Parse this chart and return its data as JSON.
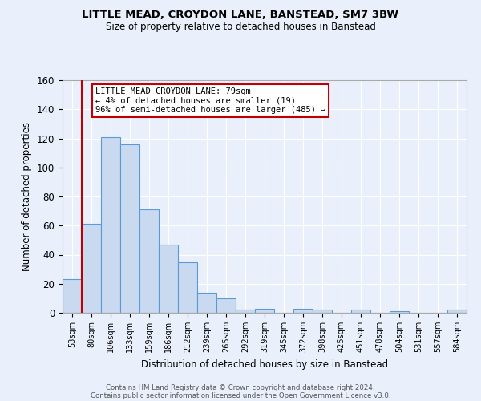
{
  "title1": "LITTLE MEAD, CROYDON LANE, BANSTEAD, SM7 3BW",
  "title2": "Size of property relative to detached houses in Banstead",
  "xlabel": "Distribution of detached houses by size in Banstead",
  "ylabel": "Number of detached properties",
  "categories": [
    "53sqm",
    "80sqm",
    "106sqm",
    "133sqm",
    "159sqm",
    "186sqm",
    "212sqm",
    "239sqm",
    "265sqm",
    "292sqm",
    "319sqm",
    "345sqm",
    "372sqm",
    "398sqm",
    "425sqm",
    "451sqm",
    "478sqm",
    "504sqm",
    "531sqm",
    "557sqm",
    "584sqm"
  ],
  "values": [
    23,
    61,
    121,
    116,
    71,
    47,
    35,
    14,
    10,
    2,
    3,
    0,
    3,
    2,
    0,
    2,
    0,
    1,
    0,
    0,
    2
  ],
  "bar_color": "#c9d9f0",
  "bar_edge_color": "#5b9bd5",
  "vline_x_idx": 1,
  "vline_color": "#c00000",
  "annotation_text": "LITTLE MEAD CROYDON LANE: 79sqm\n← 4% of detached houses are smaller (19)\n96% of semi-detached houses are larger (485) →",
  "annotation_box_color": "#ffffff",
  "annotation_box_edge": "#c00000",
  "ylim": [
    0,
    160
  ],
  "yticks": [
    0,
    20,
    40,
    60,
    80,
    100,
    120,
    140,
    160
  ],
  "footer1": "Contains HM Land Registry data © Crown copyright and database right 2024.",
  "footer2": "Contains public sector information licensed under the Open Government Licence v3.0.",
  "bg_color": "#eaf0fb",
  "grid_color": "#ffffff"
}
